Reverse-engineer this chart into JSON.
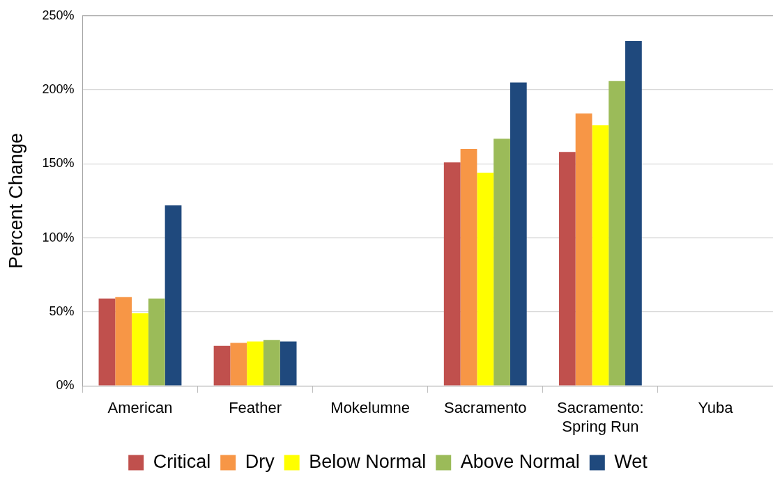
{
  "chart_data": {
    "type": "bar",
    "ylabel": "Percent Change",
    "categories": [
      "American",
      "Feather",
      "Mokelumne",
      "Sacramento",
      "Sacramento: Spring Run",
      "Yuba"
    ],
    "series": [
      {
        "name": "Critical",
        "color": "#c0504d",
        "values": [
          59,
          27,
          null,
          151,
          158,
          null
        ]
      },
      {
        "name": "Dry",
        "color": "#f79646",
        "values": [
          60,
          29,
          null,
          160,
          184,
          null
        ]
      },
      {
        "name": "Below Normal",
        "color": "#ffff00",
        "values": [
          49,
          30,
          null,
          144,
          176,
          null
        ]
      },
      {
        "name": "Above Normal",
        "color": "#9bbb59",
        "values": [
          59,
          31,
          null,
          167,
          206,
          null
        ]
      },
      {
        "name": "Wet",
        "color": "#1f497d",
        "values": [
          122,
          30,
          null,
          205,
          233,
          null
        ]
      }
    ],
    "ylim": [
      0,
      250
    ],
    "yticks": [
      {
        "value": 0,
        "label": "0%"
      },
      {
        "value": 50,
        "label": "50%"
      },
      {
        "value": 100,
        "label": "100%"
      },
      {
        "value": 150,
        "label": "150%"
      },
      {
        "value": 200,
        "label": "200%"
      },
      {
        "value": 250,
        "label": "250%"
      }
    ],
    "grid": "y",
    "legend": "bottom"
  }
}
